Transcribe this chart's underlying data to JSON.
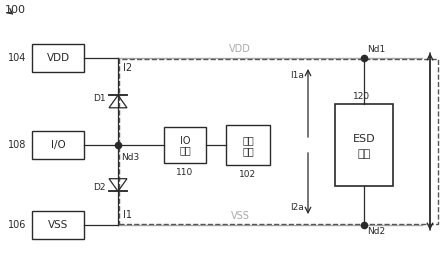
{
  "bg_color": "#ffffff",
  "line_color": "#2a2a2a",
  "gray_line": "#aaaaaa",
  "dashed_color": "#555555",
  "fig_label": "100",
  "vdd_box_label": "VDD",
  "vss_box_label": "VSS",
  "io_box_label": "I/O",
  "nd1_label": "Nd1",
  "nd2_label": "Nd2",
  "nd3_label": "Nd3",
  "d1_label": "D1",
  "d2_label": "D2",
  "i1_label": "I1",
  "i2_label": "I2",
  "i1a_label": "I1a",
  "i2a_label": "I2a",
  "io_circuit_l1": "IO",
  "io_circuit_l2": "电路",
  "inner_circuit_l1": "内部",
  "inner_circuit_l2": "电路",
  "esd_l1": "ESD",
  "esd_l2": "镓位",
  "esd_num": "120",
  "io_circuit_num": "110",
  "inner_circuit_num": "102",
  "label_104": "104",
  "label_106": "106",
  "label_108": "108",
  "vdd_line_label": "VDD",
  "vss_line_label": "VSS"
}
